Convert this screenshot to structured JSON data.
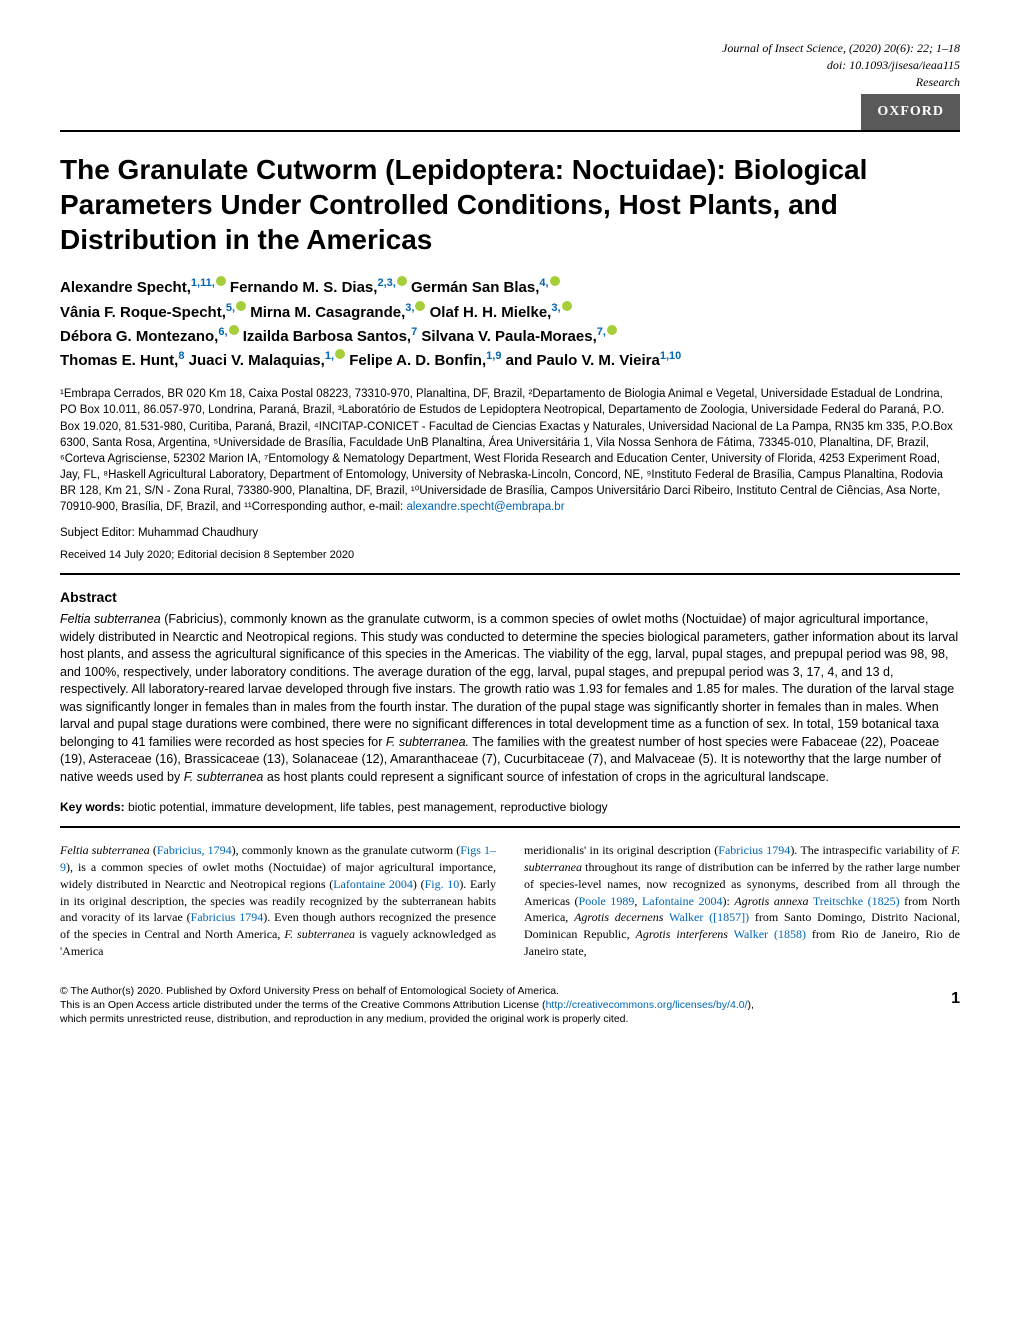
{
  "header": {
    "journal": "Journal of Insect Science",
    "citation": ", (2020) 20(6): 22; 1–18",
    "doi": "doi: 10.1093/jisesa/ieaa115",
    "type": "Research",
    "publisher_badge": "OXFORD"
  },
  "title": "The Granulate Cutworm (Lepidoptera: Noctuidae): Biological Parameters Under Controlled Conditions, Host Plants, and Distribution in the Americas",
  "authors": {
    "line1_a": "Alexandre Specht,",
    "line1_a_sup": "1,11,",
    "line1_b": " Fernando M. S. Dias,",
    "line1_b_sup": "2,3,",
    "line1_c": " Germán San Blas,",
    "line1_c_sup": "4,",
    "line2_a": "Vânia F. Roque-Specht,",
    "line2_a_sup": "5,",
    "line2_b": " Mirna M. Casagrande,",
    "line2_b_sup": "3,",
    "line2_c": " Olaf H. H. Mielke,",
    "line2_c_sup": "3,",
    "line3_a": "Débora G. Montezano,",
    "line3_a_sup": "6,",
    "line3_b": " Izailda Barbosa Santos,",
    "line3_b_sup": "7",
    "line3_c": " Silvana V. Paula-Moraes,",
    "line3_c_sup": "7,",
    "line4_a": "Thomas E. Hunt,",
    "line4_a_sup": "8",
    "line4_b": " Juaci V. Malaquias,",
    "line4_b_sup": "1,",
    "line4_c": " Felipe A. D. Bonfin,",
    "line4_c_sup": "1,9",
    "line4_d": " and Paulo V. M. Vieira",
    "line4_d_sup": "1,10"
  },
  "affiliations": "¹Embrapa Cerrados, BR 020 Km 18, Caixa Postal 08223, 73310-970, Planaltina, DF, Brazil, ²Departamento de Biologia Animal e Vegetal, Universidade Estadual de Londrina, PO Box 10.011, 86.057-970, Londrina, Paraná, Brazil, ³Laboratório de Estudos de Lepidoptera Neotropical, Departamento de Zoologia, Universidade Federal do Paraná, P.O. Box 19.020, 81.531-980, Curitiba, Paraná, Brazil, ⁴INCITAP-CONICET - Facultad de Ciencias Exactas y Naturales, Universidad Nacional de La Pampa, RN35 km 335, P.O.Box 6300, Santa Rosa, Argentina, ⁵Universidade de Brasília, Faculdade UnB Planaltina, Área Universitária 1, Vila Nossa Senhora de Fátima, 73345-010, Planaltina, DF, Brazil, ⁶Corteva Agrisciense, 52302 Marion IA, ⁷Entomology & Nematology Department, West Florida Research and Education Center, University of Florida, 4253 Experiment Road, Jay, FL, ⁸Haskell Agricultural Laboratory, Department of Entomology, University of Nebraska-Lincoln, Concord, NE, ⁹Instituto Federal de Brasília, Campus Planaltina, Rodovia BR 128, Km 21, S/N - Zona Rural, 73380-900, Planaltina, DF, Brazil, ¹⁰Universidade de Brasília, Campos Universitário Darci Ribeiro, Instituto Central de Ciências, Asa Norte, 70910-900, Brasília, DF, Brazil, and ¹¹Corresponding author, e-mail: ",
  "corresponding_email": "alexandre.specht@embrapa.br",
  "editor": "Subject Editor: Muhammad Chaudhury",
  "dates": "Received 14 July 2020; Editorial decision 8 September 2020",
  "abstract_heading": "Abstract",
  "abstract": "Feltia subterranea (Fabricius), commonly known as the granulate cutworm, is a common species of owlet moths (Noctuidae) of major agricultural importance, widely distributed in Nearctic and Neotropical regions. This study was conducted to determine the species biological parameters, gather information about its larval host plants, and assess the agricultural significance of this species in the Americas. The viability of the egg, larval, pupal stages, and prepupal period was 98, 98, and 100%, respectively, under laboratory conditions. The average duration of the egg, larval, pupal stages, and prepupal period was 3, 17, 4, and 13 d, respectively. All laboratory-reared larvae developed through five instars. The growth ratio was 1.93 for females and 1.85 for males. The duration of the larval stage was significantly longer in females than in males from the fourth instar. The duration of the pupal stage was significantly shorter in females than in males. When larval and pupal stage durations were combined, there were no significant differences in total development time as a function of sex. In total, 159 botanical taxa belonging to 41 families were recorded as host species for F. subterranea. The families with the greatest number of host species were Fabaceae (22), Poaceae (19), Asteraceae (16), Brassicaceae (13), Solanaceae (12), Amaranthaceae (7), Cucurbitaceae (7), and Malvaceae (5). It is noteworthy that the large number of native weeds used by F. subterranea as host plants could represent a significant source of infestation of crops in the agricultural landscape.",
  "keywords_label": "Key words:  ",
  "keywords": "biotic potential, immature development, life tables, pest management, reproductive biology",
  "body": {
    "col1": "Feltia subterranea (Fabricius, 1794), commonly known as the granulate cutworm (Figs 1–9), is a common species of owlet moths (Noctuidae) of major agricultural importance, widely distributed in Nearctic and Neotropical regions (Lafontaine 2004) (Fig. 10). Early in its original description, the species was readily recognized by the subterranean habits and voracity of its larvae (Fabricius 1794). Even though authors recognized the presence of the species in Central and North America, F. subterranea is vaguely acknowledged as 'America",
    "col2": "meridionalis' in its original description (Fabricius 1794). The intraspecific variability of F. subterranea throughout its range of distribution can be inferred by the rather large number of species-level names, now recognized as synonyms, described from all through the Americas (Poole 1989, Lafontaine 2004): Agrotis annexa Treitschke (1825) from North America, Agrotis decernens Walker ([1857]) from Santo Domingo, Distrito Nacional, Dominican Republic, Agrotis interferens Walker (1858) from Rio de Janeiro, Rio de Janeiro state,"
  },
  "footer": {
    "copyright": "© The Author(s) 2020. Published by Oxford University Press on behalf of Entomological Society of America.",
    "license1": "This is an Open Access article distributed under the terms of the Creative Commons Attribution License (",
    "license_url": "http://creativecommons.org/licenses/by/4.0/",
    "license2": "),",
    "license3": "which permits unrestricted reuse, distribution, and reproduction in any medium, provided the original work is properly cited.",
    "page_num": "1"
  }
}
